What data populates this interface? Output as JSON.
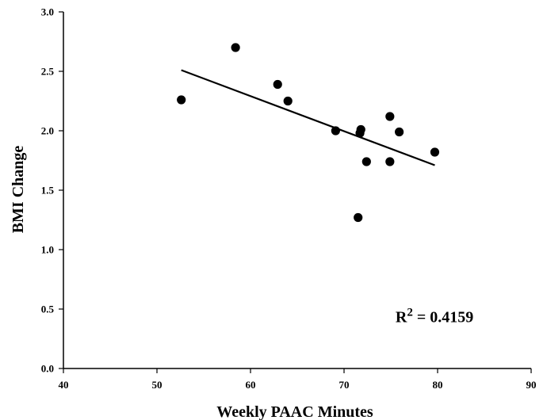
{
  "chart_data": {
    "type": "scatter",
    "xlabel": "Weekly PAAC Minutes",
    "ylabel": "BMI Change",
    "xlim": [
      40,
      90
    ],
    "ylim": [
      0.0,
      3.0
    ],
    "xticks": [
      40,
      50,
      60,
      70,
      80,
      90
    ],
    "yticks": [
      0.0,
      0.5,
      1.0,
      1.5,
      2.0,
      2.5,
      3.0
    ],
    "xtick_labels": [
      "40",
      "50",
      "60",
      "70",
      "80",
      "90"
    ],
    "ytick_labels": [
      "0.0",
      "0.5",
      "1.0",
      "1.5",
      "2.0",
      "2.5",
      "3.0"
    ],
    "grid": false,
    "points": [
      {
        "x": 52.6,
        "y": 2.26
      },
      {
        "x": 58.4,
        "y": 2.7
      },
      {
        "x": 62.9,
        "y": 2.39
      },
      {
        "x": 64.0,
        "y": 2.25
      },
      {
        "x": 69.1,
        "y": 2.0
      },
      {
        "x": 71.7,
        "y": 1.98
      },
      {
        "x": 71.8,
        "y": 2.01
      },
      {
        "x": 72.4,
        "y": 1.74
      },
      {
        "x": 71.5,
        "y": 1.27
      },
      {
        "x": 74.9,
        "y": 2.12
      },
      {
        "x": 74.9,
        "y": 1.74
      },
      {
        "x": 75.9,
        "y": 1.99
      },
      {
        "x": 79.7,
        "y": 1.82
      }
    ],
    "trendline": {
      "x": [
        52.6,
        79.7
      ],
      "y": [
        2.51,
        1.71
      ]
    },
    "annotation": {
      "base": "R",
      "sup": "2",
      "rest": " = 0.4159",
      "x": 75.5,
      "y": 0.39
    },
    "colors": {
      "points": "#000000",
      "line": "#000000",
      "axes": "#000000"
    }
  }
}
